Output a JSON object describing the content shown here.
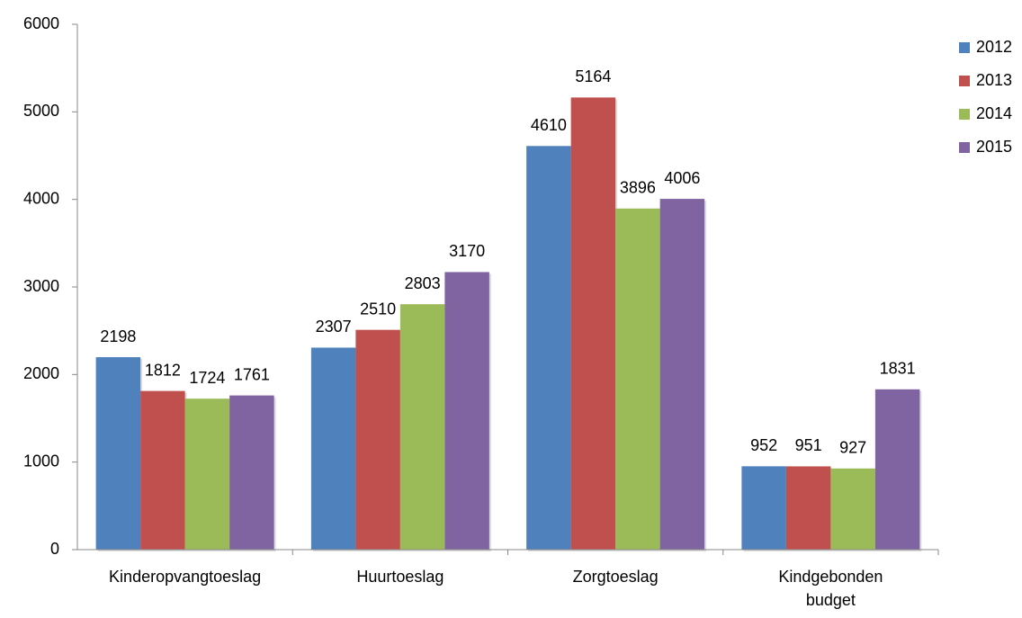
{
  "chart_data": {
    "type": "bar",
    "categories": [
      "Kinderopvangtoeslag",
      "Huurtoeslag",
      "Zorgtoeslag",
      "Kindgebonden budget"
    ],
    "series": [
      {
        "name": "2012",
        "color": "#4f81bd",
        "values": [
          2198,
          2307,
          4610,
          952
        ]
      },
      {
        "name": "2013",
        "color": "#c0504d",
        "values": [
          1812,
          2510,
          5164,
          951
        ]
      },
      {
        "name": "2014",
        "color": "#9bbb59",
        "values": [
          1724,
          2803,
          3896,
          927
        ]
      },
      {
        "name": "2015",
        "color": "#8064a2",
        "values": [
          1761,
          3170,
          4006,
          1831
        ]
      }
    ],
    "ylim": [
      0,
      6000
    ],
    "yticks": [
      0,
      1000,
      2000,
      3000,
      4000,
      5000,
      6000
    ],
    "grid": false,
    "legend": "right"
  }
}
